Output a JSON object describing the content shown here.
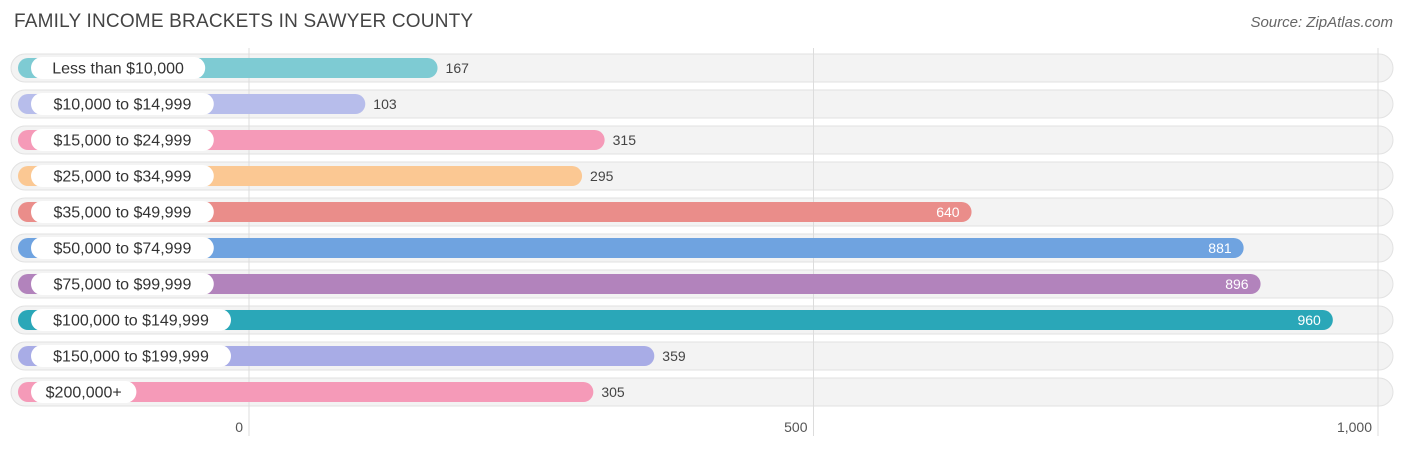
{
  "title": "FAMILY INCOME BRACKETS IN SAWYER COUNTY",
  "source": "Source: ZipAtlas.com",
  "chart_data": {
    "type": "bar",
    "orientation": "horizontal",
    "title": "FAMILY INCOME BRACKETS IN SAWYER COUNTY",
    "categories": [
      "Less than $10,000",
      "$10,000 to $14,999",
      "$15,000 to $24,999",
      "$25,000 to $34,999",
      "$35,000 to $49,999",
      "$50,000 to $74,999",
      "$75,000 to $99,999",
      "$100,000 to $149,999",
      "$150,000 to $199,999",
      "$200,000+"
    ],
    "values": [
      167,
      103,
      315,
      295,
      640,
      881,
      896,
      960,
      359,
      305
    ],
    "value_labels": [
      "167",
      "103",
      "315",
      "295",
      "640",
      "881",
      "896",
      "960",
      "359",
      "305"
    ],
    "colors": [
      "#7ecbd3",
      "#b7bdeb",
      "#f59ab8",
      "#fbc893",
      "#ea8d8a",
      "#6fa3e0",
      "#b283bc",
      "#2aa7b8",
      "#a8ace6",
      "#f59ab8"
    ],
    "xlim": [
      0,
      1000
    ],
    "xticks": [
      0,
      500,
      1000
    ],
    "xtick_labels": [
      "0",
      "500",
      "1,000"
    ],
    "grid": true
  }
}
